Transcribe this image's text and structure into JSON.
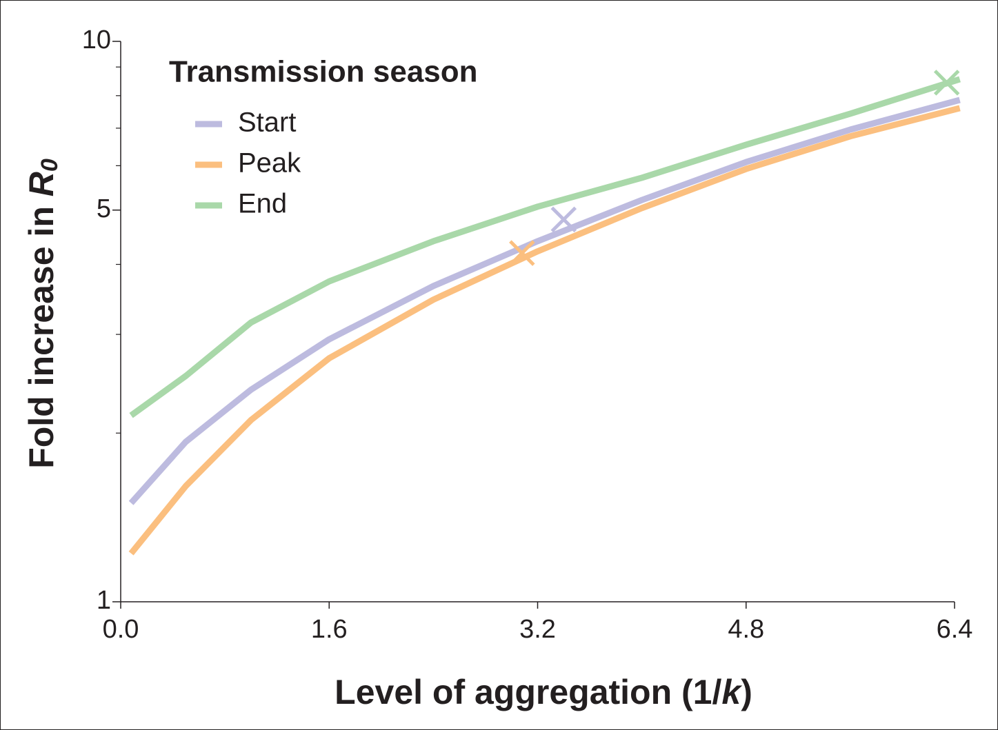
{
  "chart_data": {
    "type": "line",
    "xlabel": {
      "text": "Level of aggregation  (1/",
      "italic": "k",
      "after": ")"
    },
    "ylabel": {
      "text": "Fold increase in ",
      "italic": "R",
      "subscript": "0"
    },
    "legend_title": "Transmission season",
    "legend_position": "upper left",
    "x": [
      0.08,
      0.5,
      1.0,
      1.6,
      2.4,
      3.2,
      4.0,
      4.8,
      5.6,
      6.44
    ],
    "series": [
      {
        "name": "Start",
        "color": "#bdbbdf",
        "values": [
          1.5,
          1.93,
          2.39,
          2.94,
          3.66,
          4.4,
          5.21,
          6.09,
          6.96,
          7.86
        ],
        "marker": {
          "x": 3.4,
          "y": 4.81
        }
      },
      {
        "name": "Peak",
        "color": "#fbbf7f",
        "values": [
          1.22,
          1.61,
          2.11,
          2.72,
          3.46,
          4.22,
          5.04,
          5.92,
          6.77,
          7.6
        ],
        "marker": {
          "x": 3.08,
          "y": 4.19
        }
      },
      {
        "name": "End",
        "color": "#a9d8a9",
        "values": [
          2.15,
          2.53,
          3.15,
          3.73,
          4.4,
          5.07,
          5.71,
          6.54,
          7.43,
          8.56
        ],
        "marker": {
          "x": 6.34,
          "y": 8.44
        }
      }
    ],
    "xlim": [
      0,
      6.4
    ],
    "xticks": [
      {
        "value": 0,
        "label": "0.0"
      },
      1.6,
      3.2,
      4.8,
      6.4
    ],
    "ylim": [
      1,
      10
    ],
    "yscale": "log",
    "yticks": [
      1,
      5,
      10
    ],
    "yminor_ticks": [
      2,
      3,
      4,
      6,
      7,
      8,
      9
    ]
  }
}
